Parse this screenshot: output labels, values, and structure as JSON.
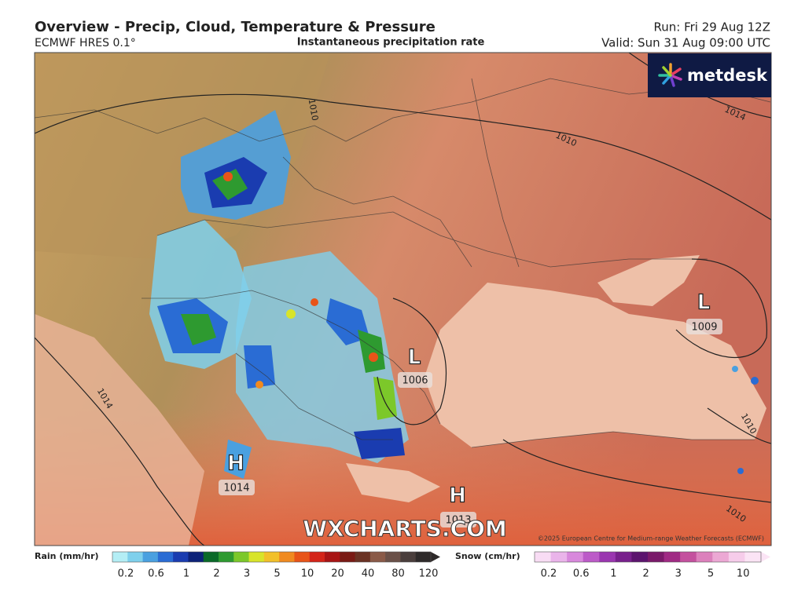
{
  "header": {
    "title": "Overview - Precip, Cloud, Temperature & Pressure",
    "model": "ECMWF HRES 0.1°",
    "subtitle": "Instantaneous precipitation rate",
    "run": "Run: Fri 29 Aug 12Z",
    "valid": "Valid: Sun 31 Aug 09:00 UTC"
  },
  "logo": "metdesk",
  "pressure_centers": [
    {
      "label": "L",
      "value": 1006
    },
    {
      "label": "L",
      "value": 1009
    },
    {
      "label": "H",
      "value": 1014
    },
    {
      "label": "H",
      "value": 1013
    }
  ],
  "isobar_labels": [
    1010,
    1010,
    1014,
    1014,
    1010,
    1010
  ],
  "watermark": "WXCHARTS.COM",
  "copyright": "©2025 European Centre for Medium-range Weather Forecasts (ECMWF)",
  "legend": {
    "rain": {
      "label": "Rain (mm/hr)",
      "ticks": [
        0.2,
        0.6,
        1,
        2,
        3,
        5,
        10,
        20,
        40,
        80,
        120
      ],
      "colors": [
        "#b4eef5",
        "#7fd0ec",
        "#4aa0e0",
        "#2a6cd4",
        "#1a3cb0",
        "#0c2278",
        "#0a6a28",
        "#2e9a30",
        "#7cc82a",
        "#d8e42a",
        "#f2c02a",
        "#f08a20",
        "#e85418",
        "#d42418",
        "#a81414",
        "#7a1a14",
        "#6a3224",
        "#8a5a48",
        "#6a5048",
        "#4a3e3c",
        "#2e2a2a"
      ]
    },
    "snow": {
      "label": "Snow (cm/hr)",
      "ticks": [
        0.2,
        0.6,
        1,
        2,
        3,
        5,
        10
      ],
      "colors": [
        "#f8dcf4",
        "#eab4ea",
        "#d888dc",
        "#bc5ac8",
        "#9a36b0",
        "#78208c",
        "#5c146e",
        "#7a1a6a",
        "#a02a84",
        "#c4509e",
        "#dc80bc",
        "#eca8d4",
        "#f6ccea",
        "#fbe4f5"
      ]
    }
  }
}
